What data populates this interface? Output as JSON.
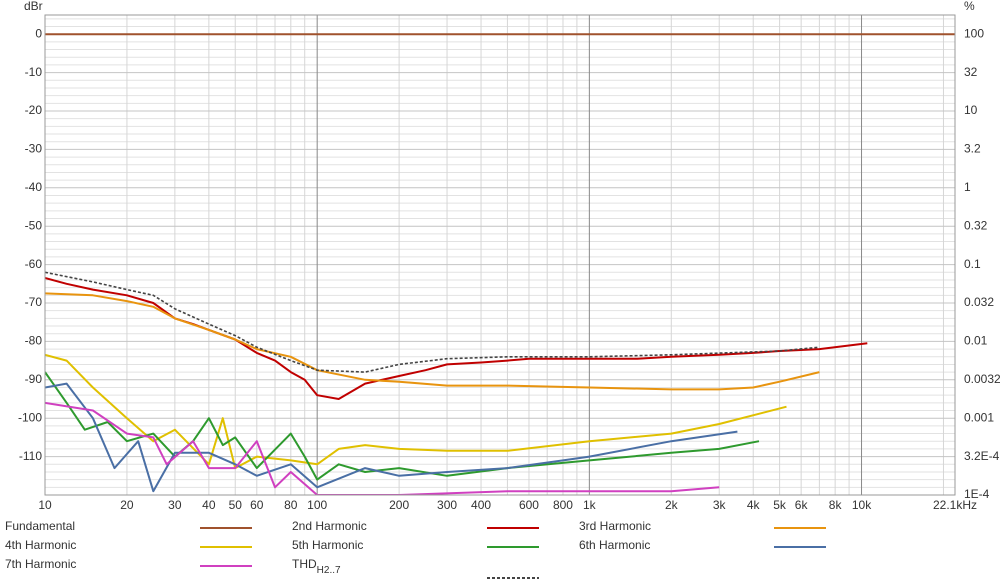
{
  "chart_data": {
    "type": "line",
    "ylabel": "dBr",
    "y2label": "%",
    "xscale": "log",
    "y2scale": "log",
    "grid": true,
    "xlim": [
      10,
      22050
    ],
    "ylim": [
      -120,
      5
    ],
    "y2lim": [
      0.0001,
      177.8
    ],
    "xticks": [
      10,
      20,
      30,
      40,
      50,
      60,
      80,
      100,
      200,
      300,
      400,
      600,
      800,
      {
        "value": 1000,
        "label": "1k"
      },
      {
        "value": 2000,
        "label": "2k"
      },
      {
        "value": 3000,
        "label": "3k"
      },
      {
        "value": 4000,
        "label": "4k"
      },
      {
        "value": 5000,
        "label": "5k"
      },
      {
        "value": 6000,
        "label": "6k"
      },
      {
        "value": 8000,
        "label": "8k"
      },
      {
        "value": 10000,
        "label": "10k"
      },
      {
        "value": 22050,
        "label": "22.1kHz"
      }
    ],
    "xminorticks": [
      20,
      30,
      40,
      50,
      60,
      70,
      80,
      90,
      200,
      300,
      400,
      500,
      600,
      700,
      800,
      900,
      2000,
      3000,
      4000,
      5000,
      6000,
      7000,
      8000,
      9000,
      20000
    ],
    "xmajorticks": [
      100,
      1000,
      10000
    ],
    "yticks": [
      0,
      -10,
      -20,
      -30,
      -40,
      -50,
      -60,
      -70,
      -80,
      -90,
      -100,
      -110
    ],
    "yminorticks": [
      4,
      2,
      -2,
      -4,
      -6,
      -8,
      -12,
      -14,
      -16,
      -18,
      -22,
      -24,
      -26,
      -28,
      -32,
      -34,
      -36,
      -38,
      -42,
      -44,
      -46,
      -48,
      -52,
      -54,
      -56,
      -58,
      -62,
      -64,
      -66,
      -68,
      -72,
      -74,
      -76,
      -78,
      -82,
      -84,
      -86,
      -88,
      -92,
      -94,
      -96,
      -98,
      -102,
      -104,
      -106,
      -108,
      -112,
      -114,
      -116,
      -118
    ],
    "y2ticks": [
      100,
      {
        "value": 31.62,
        "label": "32"
      },
      10,
      {
        "value": 3.162,
        "label": "3.2"
      },
      1,
      {
        "value": 0.3162,
        "label": "0.32"
      },
      0.1,
      {
        "value": 0.03162,
        "label": "0.032"
      },
      0.01,
      {
        "value": 0.003162,
        "label": "0.0032"
      },
      0.001,
      {
        "value": 0.0003162,
        "label": "3.2E-4"
      },
      {
        "value": 0.0001,
        "label": "1E-4"
      }
    ],
    "series": [
      {
        "name": "Fundamental",
        "color": "#a0522d",
        "x": [
          10,
          22050
        ],
        "values": [
          0,
          0
        ]
      },
      {
        "name": "2nd Harmonic",
        "color": "#c00000",
        "x": [
          10,
          12,
          15,
          20,
          25,
          30,
          35,
          40,
          50,
          60,
          70,
          80,
          90,
          100,
          120,
          150,
          200,
          250,
          300,
          400,
          500,
          600,
          800,
          1000,
          1500,
          2000,
          3000,
          4000,
          5000,
          7000,
          10500
        ],
        "values": [
          -63.5,
          -65,
          -66.5,
          -68,
          -70,
          -74,
          -75.5,
          -77,
          -79.5,
          -83,
          -85,
          -88,
          -90,
          -94,
          -95,
          -91,
          -89,
          -87.5,
          -86,
          -85.5,
          -85,
          -84.5,
          -84.5,
          -84.5,
          -84.5,
          -84,
          -83.5,
          -83,
          -82.5,
          -82,
          -80.5
        ]
      },
      {
        "name": "3rd Harmonic",
        "color": "#e8940f",
        "x": [
          10,
          15,
          20,
          25,
          30,
          40,
          50,
          60,
          80,
          100,
          150,
          200,
          300,
          500,
          1000,
          2000,
          3000,
          4000,
          5000,
          7000
        ],
        "values": [
          -67.5,
          -68,
          -69.5,
          -71,
          -74,
          -77,
          -79.5,
          -82,
          -84,
          -87.5,
          -90,
          -90.5,
          -91.5,
          -91.5,
          -92,
          -92.5,
          -92.5,
          -92,
          -90.5,
          -88
        ]
      },
      {
        "name": "4th Harmonic",
        "color": "#e0c000",
        "x": [
          10,
          12,
          15,
          20,
          25,
          30,
          40,
          45,
          50,
          60,
          80,
          100,
          120,
          150,
          200,
          300,
          500,
          1000,
          2000,
          3000,
          5300
        ],
        "values": [
          -83.5,
          -85,
          -92,
          -100,
          -106,
          -103,
          -112,
          -100,
          -113,
          -110,
          -111,
          -112,
          -108,
          -107,
          -108,
          -108.5,
          -108.5,
          -106,
          -104,
          -101.5,
          -97
        ]
      },
      {
        "name": "5th Harmonic",
        "color": "#2e9a2e",
        "x": [
          10,
          12,
          14,
          17,
          20,
          25,
          30,
          35,
          40,
          45,
          50,
          60,
          80,
          90,
          100,
          120,
          150,
          200,
          300,
          500,
          1000,
          2000,
          3000,
          4200
        ],
        "values": [
          -88,
          -96,
          -103,
          -101,
          -106,
          -104,
          -110,
          -106,
          -100,
          -107,
          -105,
          -113,
          -104,
          -110,
          -116,
          -112,
          -114,
          -113,
          -115,
          -113,
          -111,
          -109,
          -108,
          -106
        ]
      },
      {
        "name": "6th Harmonic",
        "color": "#4a6fa5",
        "x": [
          10,
          12,
          15,
          18,
          22,
          25,
          30,
          40,
          50,
          60,
          80,
          100,
          150,
          200,
          300,
          500,
          800,
          1000,
          2000,
          3500
        ],
        "values": [
          -92,
          -91,
          -100,
          -113,
          -106,
          -119,
          -109,
          -109,
          -112,
          -115,
          -112,
          -118,
          -113,
          -115,
          -114,
          -113,
          -111,
          -110,
          -106,
          -103.5
        ]
      },
      {
        "name": "7th Harmonic",
        "color": "#d040c0",
        "x": [
          10,
          15,
          20,
          25,
          28,
          35,
          40,
          50,
          60,
          70,
          80,
          100,
          200,
          500,
          1000,
          2000,
          3000
        ],
        "values": [
          -96,
          -98,
          -104,
          -105,
          -112,
          -106,
          -113,
          -113,
          -106,
          -118,
          -114,
          -120,
          -120,
          -119,
          -119,
          -119,
          -118
        ]
      },
      {
        "name": "THD",
        "name_subscript": "H2..7",
        "color": "#444444",
        "dashed": true,
        "x": [
          10,
          15,
          20,
          25,
          30,
          40,
          50,
          60,
          80,
          100,
          150,
          200,
          300,
          500,
          1000,
          2000,
          5000,
          7000
        ],
        "values": [
          -62,
          -64.5,
          -66.5,
          -68,
          -71.5,
          -75.5,
          -78.5,
          -81.5,
          -85,
          -87.5,
          -88,
          -86,
          -84.5,
          -84,
          -84,
          -83.5,
          -82.5,
          -81.5
        ]
      }
    ]
  }
}
